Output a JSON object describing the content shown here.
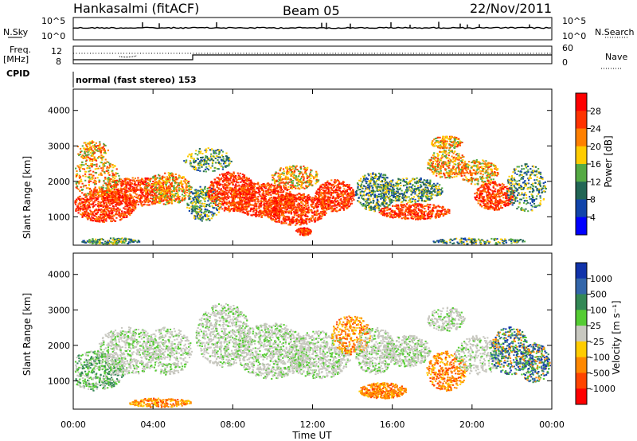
{
  "header": {
    "station": "Hankasalmi (fitACF)",
    "beam": "Beam 05",
    "date": "22/Nov/2011"
  },
  "top_panels": {
    "nsky_label": "N.Sky",
    "nsky_ticks": [
      "10^5",
      "10^0"
    ],
    "nsearch_label": "N.Search",
    "nsearch_ticks": [
      "10^5",
      "10^0"
    ],
    "freq_label": "Freq.",
    "freq_unit": "[MHz]",
    "freq_ticks": [
      "12",
      "8"
    ],
    "nave_label": "Nave",
    "nave_ticks": [
      "60",
      "0"
    ],
    "cpid_label": "CPID",
    "cpid_text": "normal (fast stereo) 153"
  },
  "chart_data": [
    {
      "type": "heatmap",
      "name": "power",
      "ylabel": "Slant Range [km]",
      "ylim": [
        200,
        4600
      ],
      "yticks": [
        "4000",
        "3000",
        "2000",
        "1000"
      ],
      "xticks": [
        "00:00",
        "04:00",
        "08:00",
        "12:00",
        "16:00",
        "20:00",
        "00:00"
      ],
      "colorbar_label": "Power [dB]",
      "colorbar_ticks": [
        "28",
        "24",
        "20",
        "16",
        "12",
        "8",
        "4"
      ],
      "colorbar_colors": [
        "#ff0000",
        "#ff3300",
        "#ff8000",
        "#ffcc00",
        "#55aa44",
        "#226655",
        "#1144aa",
        "#0000ff"
      ]
    },
    {
      "type": "heatmap",
      "name": "velocity",
      "ylabel": "Slant Range [km]",
      "ylim": [
        200,
        4600
      ],
      "yticks": [
        "4000",
        "3000",
        "2000",
        "1000"
      ],
      "xticks": [
        "00:00",
        "04:00",
        "08:00",
        "12:00",
        "16:00",
        "20:00",
        "00:00"
      ],
      "xlabel": "Time UT",
      "colorbar_label": "Velocity [m s⁻¹]",
      "colorbar_ticks": [
        "1000",
        "500",
        "100",
        "25",
        "-25",
        "-100",
        "-500",
        "-1000"
      ],
      "colorbar_colors": [
        "#1133aa",
        "#3366aa",
        "#338855",
        "#55cc33",
        "#c8c8c0",
        "#ffcc00",
        "#ff8800",
        "#ff4400",
        "#ff0000"
      ]
    }
  ]
}
